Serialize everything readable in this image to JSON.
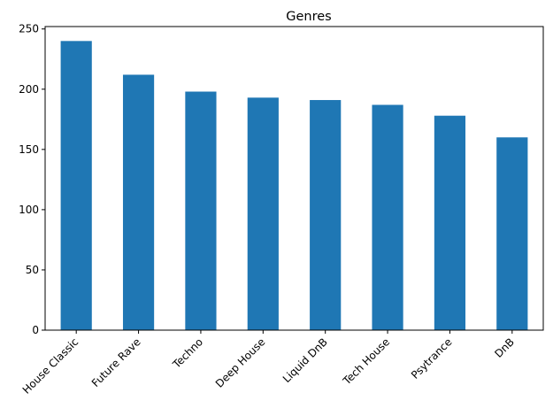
{
  "chart_data": {
    "type": "bar",
    "title": "Genres",
    "xlabel": "",
    "ylabel": "",
    "categories": [
      "House Classic",
      "Future Rave",
      "Techno",
      "Deep House",
      "Liquid DnB",
      "Tech House",
      "Psytrance",
      "DnB"
    ],
    "values": [
      240,
      212,
      198,
      193,
      191,
      187,
      178,
      160
    ],
    "ylim": [
      0,
      252
    ],
    "yticks": [
      0,
      50,
      100,
      150,
      200,
      250
    ],
    "grid": false,
    "legend": "none",
    "bar_color": "#1f77b4"
  }
}
